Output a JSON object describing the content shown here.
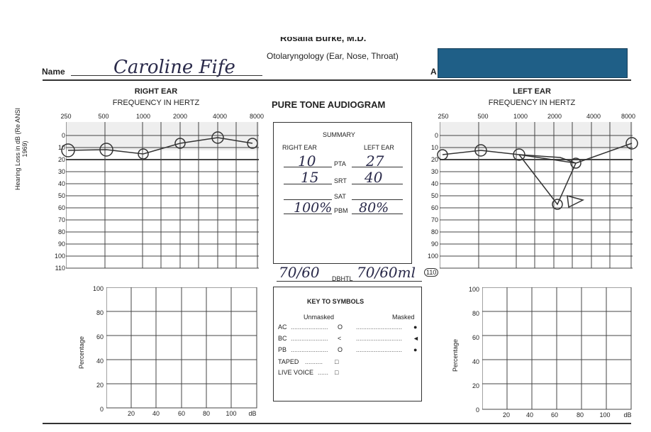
{
  "header": {
    "doctor_name_cut": "Rosalia Burke, M.D.",
    "specialty": "Otolaryngology (Ear, Nose, Throat)",
    "name_label": "Name",
    "patient_name": "Caroline Fife",
    "second_label": "A"
  },
  "title": "PURE TONE AUDIOGRAM",
  "right_ear": {
    "title": "RIGHT EAR",
    "subtitle": "FREQUENCY IN HERTZ",
    "freqs": [
      "250",
      "500",
      "1000",
      "2000",
      "4000",
      "8000"
    ],
    "levels": [
      "0",
      "10",
      "20",
      "30",
      "40",
      "50",
      "60",
      "70",
      "80",
      "90",
      "100",
      "110"
    ],
    "ylabel": "Hearing Loss in dB (Re ANSI 1969)",
    "thresholds": [
      15,
      13,
      17,
      7,
      0,
      7
    ]
  },
  "left_ear": {
    "title": "LEFT EAR",
    "subtitle": "FREQUENCY IN HERTZ",
    "freqs": [
      "250",
      "500",
      "1000",
      "2000",
      "4000",
      "8000"
    ],
    "levels": [
      "0",
      "10",
      "20",
      "30",
      "40",
      "50",
      "60",
      "70",
      "80",
      "90",
      "100",
      "110"
    ],
    "thresholds_ac": [
      16,
      13,
      15,
      22,
      10
    ],
    "dip_point": 56
  },
  "summary": {
    "title": "SUMMARY",
    "right_head": "RIGHT EAR",
    "left_head": "LEFT EAR",
    "pta_label": "PTA",
    "srt_label": "SRT",
    "sat_label": "SAT",
    "pbm_label": "PBM",
    "right_pta": "10",
    "right_srt": "15",
    "left_pta": "27",
    "left_srt": "40",
    "right_pbm": "100%",
    "left_pbm": "80%"
  },
  "dbhtl": {
    "label": "DBHTL",
    "right": "70/60",
    "left": "70/60ml",
    "level_110": "110"
  },
  "key": {
    "title": "KEY TO SYMBOLS",
    "unmasked": "Unmasked",
    "masked": "Masked",
    "rows": [
      {
        "label": "AC",
        "u": "O",
        "m": "●"
      },
      {
        "label": "BC",
        "u": "<",
        "m": "◄"
      },
      {
        "label": "PB",
        "u": "O",
        "m": "●"
      },
      {
        "label": "TAPED",
        "u": "□",
        "m": ""
      },
      {
        "label": "LIVE VOICE",
        "u": "□",
        "m": ""
      }
    ]
  },
  "speech": {
    "ylabel": "Percentage",
    "y_ticks": [
      "100",
      "80",
      "60",
      "40",
      "20",
      "0"
    ],
    "x_ticks": [
      "20",
      "40",
      "60",
      "80",
      "100",
      "dB"
    ]
  }
}
